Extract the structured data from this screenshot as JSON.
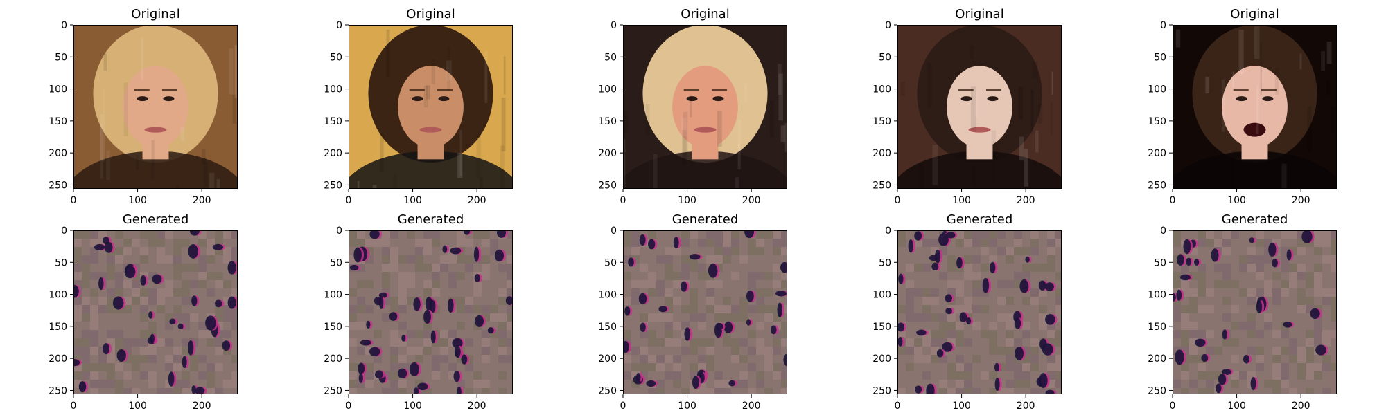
{
  "chart_data": [
    {
      "type": "image",
      "title": "Original",
      "xlim": [
        0,
        256
      ],
      "ylim": [
        256,
        0
      ],
      "xticks": [
        0,
        100,
        200
      ],
      "yticks": [
        0,
        50,
        100,
        150,
        200,
        250
      ],
      "content": "photo",
      "palette": {
        "background": "#8a5c34",
        "hair": "#d6b074",
        "skin": "#e1a987",
        "dark": "#2a1a12"
      }
    },
    {
      "type": "image",
      "title": "Original",
      "xlim": [
        0,
        256
      ],
      "ylim": [
        256,
        0
      ],
      "xticks": [
        0,
        100,
        200
      ],
      "yticks": [
        0,
        50,
        100,
        150,
        200,
        250
      ],
      "content": "photo",
      "palette": {
        "background": "#d9a84e",
        "hair": "#3b2414",
        "skin": "#c98e67",
        "dark": "#141414"
      }
    },
    {
      "type": "image",
      "title": "Original",
      "xlim": [
        0,
        256
      ],
      "ylim": [
        256,
        0
      ],
      "xticks": [
        0,
        100,
        200
      ],
      "yticks": [
        0,
        50,
        100,
        150,
        200,
        250
      ],
      "content": "photo",
      "palette": {
        "background": "#2a1c18",
        "hair": "#e0c191",
        "skin": "#e49c7f",
        "dark": "#201414"
      }
    },
    {
      "type": "image",
      "title": "Original",
      "xlim": [
        0,
        256
      ],
      "ylim": [
        256,
        0
      ],
      "xticks": [
        0,
        100,
        200
      ],
      "yticks": [
        0,
        50,
        100,
        150,
        200,
        250
      ],
      "content": "photo",
      "palette": {
        "background": "#4a2c22",
        "hair": "#2e1c16",
        "skin": "#e6c7b6",
        "dark": "#140c0a"
      }
    },
    {
      "type": "image",
      "title": "Original",
      "xlim": [
        0,
        256
      ],
      "ylim": [
        256,
        0
      ],
      "xticks": [
        0,
        100,
        200
      ],
      "yticks": [
        0,
        50,
        100,
        150,
        200,
        250
      ],
      "content": "photo",
      "palette": {
        "background": "#120806",
        "hair": "#3a2418",
        "skin": "#e8b8a6",
        "dark": "#0a0506"
      }
    },
    {
      "type": "image",
      "title": "Generated",
      "xlim": [
        0,
        256
      ],
      "ylim": [
        256,
        0
      ],
      "xticks": [
        0,
        100,
        200
      ],
      "yticks": [
        0,
        50,
        100,
        150,
        200,
        250
      ],
      "content": "noise",
      "palette": {
        "background": "#8a7470",
        "blob_dark": "#1a1438",
        "blob_accent": "#c8308c"
      }
    },
    {
      "type": "image",
      "title": "Generated",
      "xlim": [
        0,
        256
      ],
      "ylim": [
        256,
        0
      ],
      "xticks": [
        0,
        100,
        200
      ],
      "yticks": [
        0,
        50,
        100,
        150,
        200,
        250
      ],
      "content": "noise",
      "palette": {
        "background": "#8a7470",
        "blob_dark": "#1a1438",
        "blob_accent": "#c8308c"
      }
    },
    {
      "type": "image",
      "title": "Generated",
      "xlim": [
        0,
        256
      ],
      "ylim": [
        256,
        0
      ],
      "xticks": [
        0,
        100,
        200
      ],
      "yticks": [
        0,
        50,
        100,
        150,
        200,
        250
      ],
      "content": "noise",
      "palette": {
        "background": "#8a7470",
        "blob_dark": "#1a1438",
        "blob_accent": "#c8308c"
      }
    },
    {
      "type": "image",
      "title": "Generated",
      "xlim": [
        0,
        256
      ],
      "ylim": [
        256,
        0
      ],
      "xticks": [
        0,
        100,
        200
      ],
      "yticks": [
        0,
        50,
        100,
        150,
        200,
        250
      ],
      "content": "noise",
      "palette": {
        "background": "#8a7470",
        "blob_dark": "#1a1438",
        "blob_accent": "#c8308c"
      }
    },
    {
      "type": "image",
      "title": "Generated",
      "xlim": [
        0,
        256
      ],
      "ylim": [
        256,
        0
      ],
      "xticks": [
        0,
        100,
        200
      ],
      "yticks": [
        0,
        50,
        100,
        150,
        200,
        250
      ],
      "content": "noise",
      "palette": {
        "background": "#8a7470",
        "blob_dark": "#1a1438",
        "blob_accent": "#c8308c"
      }
    }
  ]
}
